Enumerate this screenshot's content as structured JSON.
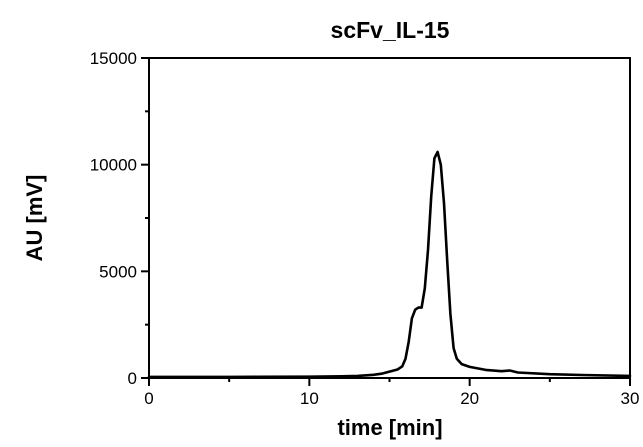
{
  "chart_data": {
    "type": "line",
    "title": "scFv_IL-15",
    "xlabel": "time [min]",
    "ylabel": "AU [mV]",
    "xlim": [
      0,
      30
    ],
    "ylim": [
      0,
      15000
    ],
    "x_ticks": [
      0,
      10,
      20,
      30
    ],
    "x_tick_labels": [
      "0",
      "10",
      "20",
      "30"
    ],
    "y_ticks": [
      0,
      5000,
      10000,
      15000
    ],
    "y_tick_labels": [
      "0",
      "5000",
      "10000",
      "15000"
    ],
    "grid": false,
    "legend": "none",
    "line_color": "#000000",
    "series": [
      {
        "x": [
          0,
          5,
          10,
          12,
          13,
          14,
          14.5,
          15,
          15.5,
          15.8,
          16.0,
          16.2,
          16.4,
          16.6,
          16.8,
          17.0,
          17.2,
          17.4,
          17.6,
          17.8,
          18.0,
          18.2,
          18.4,
          18.6,
          18.8,
          19.0,
          19.2,
          19.5,
          20,
          20.5,
          21,
          22,
          22.5,
          23,
          25,
          27,
          30
        ],
        "y": [
          50,
          50,
          60,
          80,
          100,
          150,
          200,
          300,
          400,
          550,
          900,
          1700,
          2800,
          3200,
          3300,
          3300,
          4200,
          6000,
          8500,
          10300,
          10600,
          10000,
          8200,
          5500,
          3000,
          1400,
          900,
          650,
          520,
          450,
          380,
          320,
          350,
          260,
          180,
          140,
          100
        ]
      }
    ]
  }
}
